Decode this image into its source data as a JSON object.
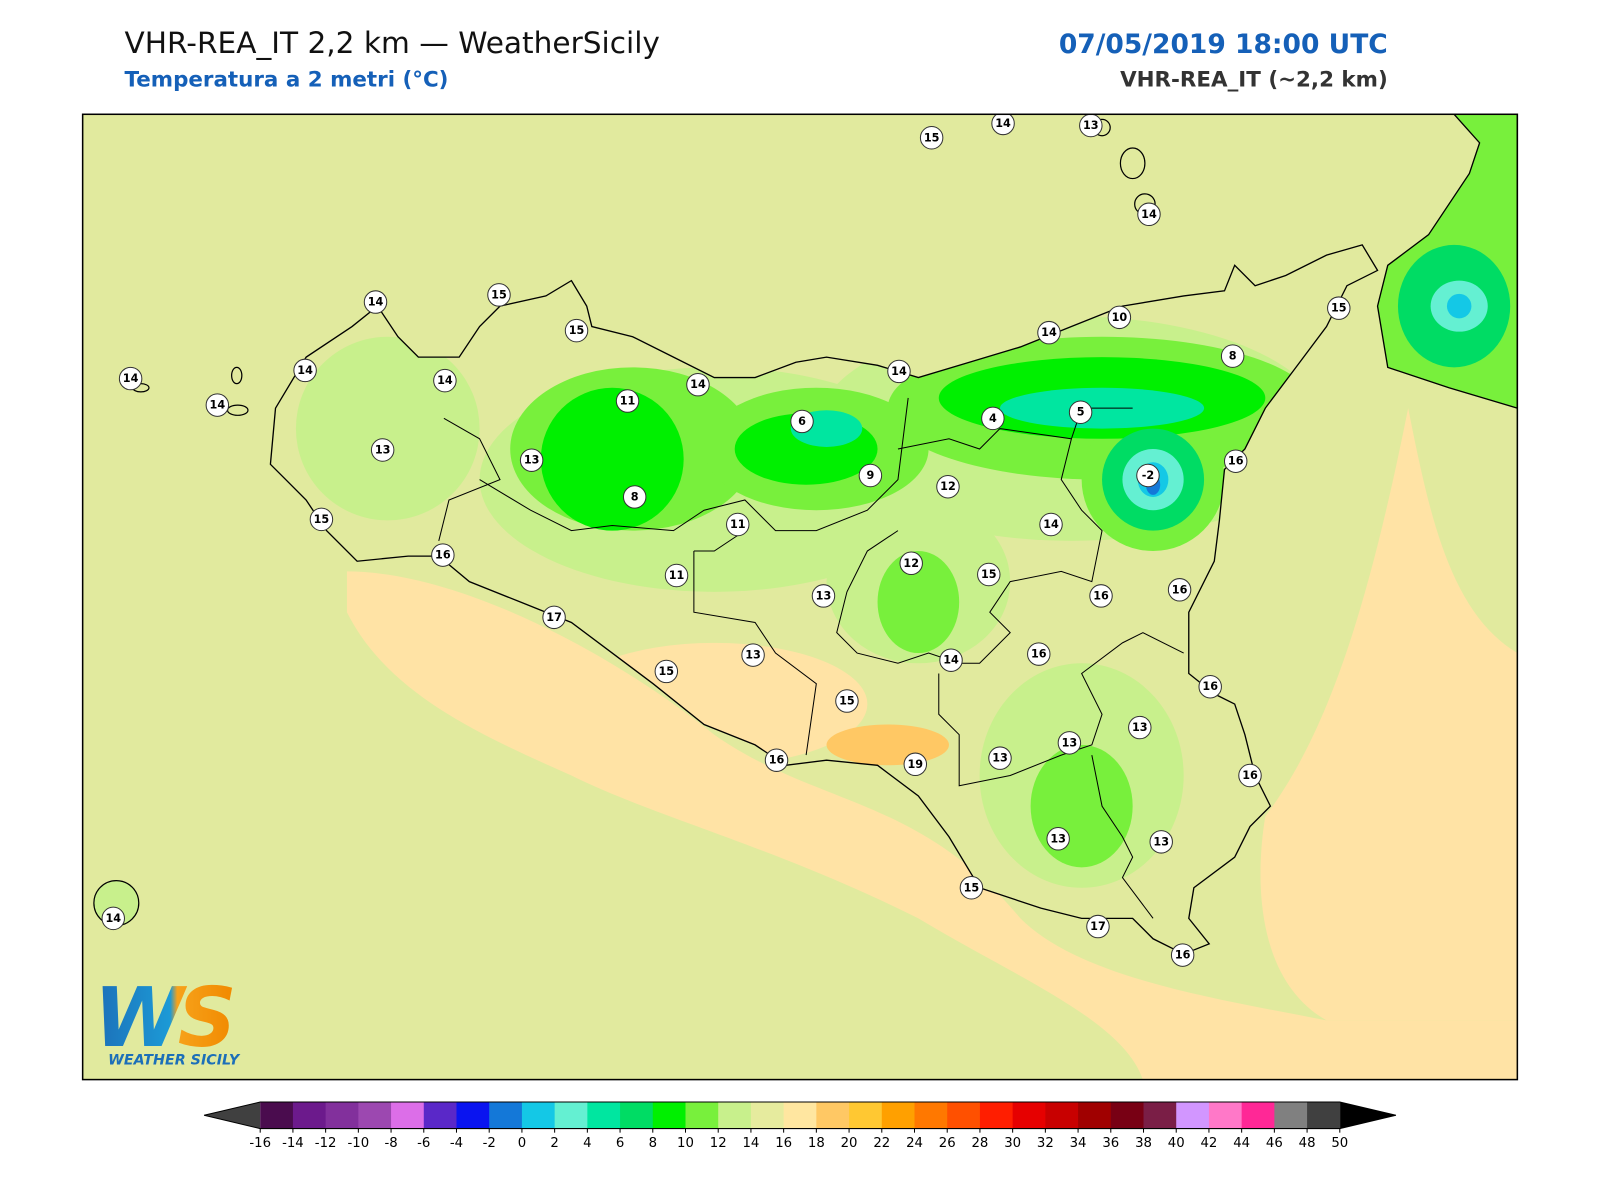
{
  "header": {
    "title": "VHR-REA_IT 2,2 km — WeatherSicily",
    "subtitle": "Temperatura a 2 metri (°C)",
    "datetime": "07/05/2019 18:00 UTC",
    "model": "VHR-REA_IT (~2,2 km)"
  },
  "stations": [
    15,
    14,
    13,
    14,
    14,
    15,
    15,
    14,
    14,
    14,
    14,
    13,
    13,
    11,
    14,
    6,
    14,
    14,
    10,
    15,
    8,
    4,
    5,
    -2,
    16,
    9,
    12,
    8,
    11,
    14,
    15,
    16,
    11,
    12,
    15,
    16,
    16,
    13,
    17,
    13,
    14,
    16,
    15,
    16,
    15,
    13,
    13,
    16,
    19,
    13,
    16,
    13,
    13,
    15,
    17,
    16,
    14
  ],
  "colorbar": {
    "ticks": [
      -16,
      -14,
      -12,
      -10,
      -8,
      -6,
      -4,
      -2,
      0,
      2,
      4,
      6,
      8,
      10,
      12,
      14,
      16,
      18,
      20,
      22,
      24,
      26,
      28,
      30,
      32,
      34,
      36,
      38,
      40,
      42,
      44,
      46,
      48,
      50
    ],
    "colors": [
      "#4a0c4e",
      "#6c1a8c",
      "#82309c",
      "#9c48b0",
      "#dc6ee8",
      "#5a28c8",
      "#0a14f0",
      "#1478d8",
      "#14c8e6",
      "#64f0d2",
      "#00e6a0",
      "#00dc64",
      "#00f000",
      "#78f03c",
      "#c8f08c",
      "#e6eb9e",
      "#ffe6a0",
      "#ffc864",
      "#ffc832",
      "#ffa000",
      "#ff7800",
      "#ff5000",
      "#ff1e00",
      "#e60000",
      "#c80000",
      "#a00000",
      "#780014",
      "#7a1e46",
      "#d296ff",
      "#ff78c8",
      "#ff2896",
      "#808080",
      "#404040"
    ],
    "under_color": "#404040",
    "over_color": "#000000"
  },
  "logo": {
    "mark": "WS",
    "text": "WEATHER SICILY"
  }
}
